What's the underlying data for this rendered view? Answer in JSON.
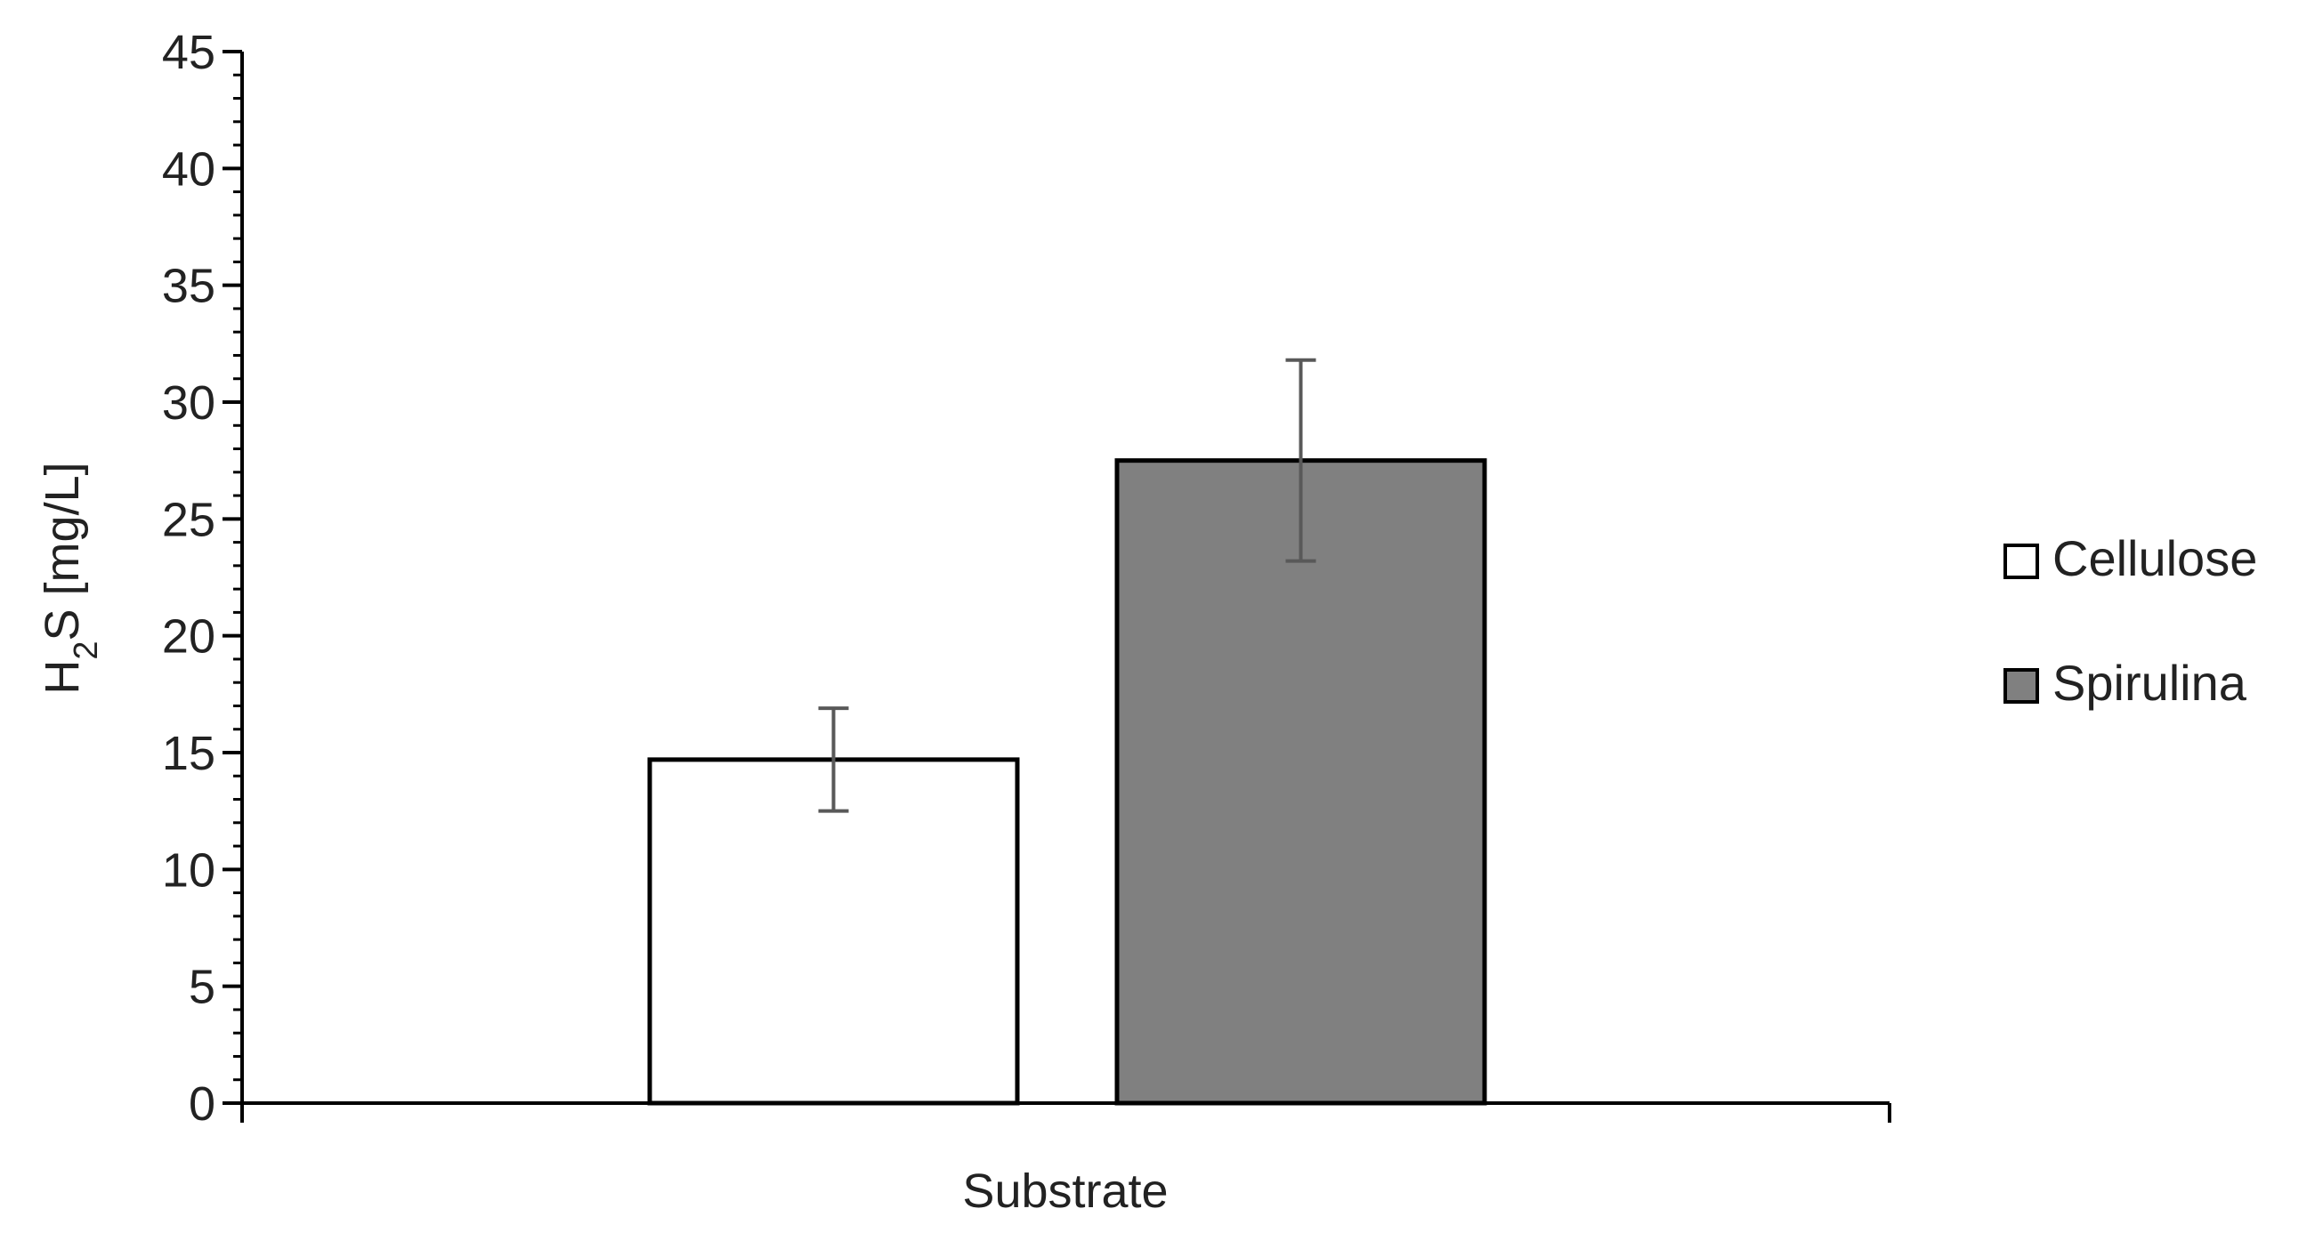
{
  "chart_data": {
    "type": "bar",
    "title": "",
    "xlabel": "Substrate",
    "ylabel": {
      "main": "H",
      "sub": "2",
      "rest": "S [mg/L]"
    },
    "ylim": [
      0,
      45
    ],
    "yticks": [
      "0",
      "5",
      "10",
      "15",
      "20",
      "25",
      "30",
      "35",
      "40",
      "45"
    ],
    "categories": [
      "Substrate"
    ],
    "series": [
      {
        "name": "Cellulose",
        "values": [
          14.7
        ],
        "error": [
          2.2
        ],
        "color": "#ffffff"
      },
      {
        "name": "Spirulina",
        "values": [
          27.5
        ],
        "error": [
          4.3
        ],
        "color": "#808080"
      }
    ],
    "grid": false,
    "legend_position": "right"
  }
}
